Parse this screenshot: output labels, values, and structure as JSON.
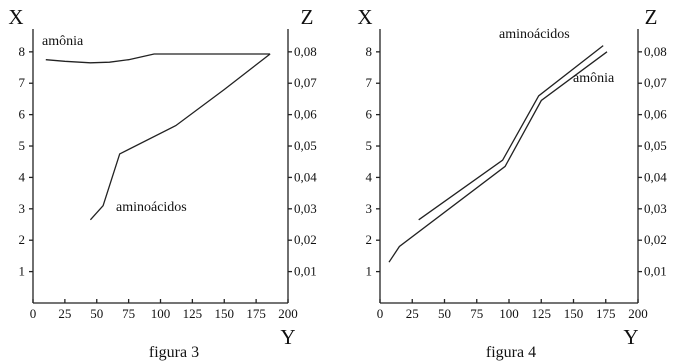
{
  "chart_data": [
    {
      "type": "line",
      "caption": "figura 3",
      "left_axis_letter": "X",
      "right_axis_letter": "Z",
      "bottom_axis_letter": "Y",
      "xlim": [
        0,
        200
      ],
      "ylim": [
        0,
        8.6
      ],
      "zlim": [
        0,
        0.086
      ],
      "x_ticks": [
        "0",
        "25",
        "50",
        "75",
        "100",
        "125",
        "150",
        "175",
        "200"
      ],
      "y_ticks": [
        "1",
        "2",
        "3",
        "4",
        "5",
        "6",
        "7",
        "8"
      ],
      "z_ticks": [
        "0,01",
        "0,02",
        "0,03",
        "0,04",
        "0,05",
        "0,06",
        "0,07",
        "0,08"
      ],
      "series": [
        {
          "name": "amônia",
          "axis": "left",
          "x": [
            10,
            25,
            45,
            60,
            75,
            95,
            120,
            150,
            186
          ],
          "y": [
            7.75,
            7.7,
            7.65,
            7.67,
            7.75,
            7.93,
            7.93,
            7.93,
            7.93
          ]
        },
        {
          "name": "aminoácidos",
          "axis": "left",
          "x": [
            45,
            55,
            68,
            112,
            150,
            186
          ],
          "y": [
            2.65,
            3.1,
            4.75,
            5.65,
            6.8,
            7.93
          ]
        }
      ]
    },
    {
      "type": "line",
      "caption": "figura 4",
      "left_axis_letter": "X",
      "right_axis_letter": "Z",
      "bottom_axis_letter": "Y",
      "xlim": [
        0,
        200
      ],
      "ylim": [
        0,
        8.6
      ],
      "zlim": [
        0,
        0.086
      ],
      "x_ticks": [
        "0",
        "25",
        "50",
        "75",
        "100",
        "125",
        "150",
        "175",
        "200"
      ],
      "y_ticks": [
        "1",
        "2",
        "3",
        "4",
        "5",
        "6",
        "7",
        "8"
      ],
      "z_ticks": [
        "0,01",
        "0,02",
        "0,03",
        "0,04",
        "0,05",
        "0,06",
        "0,07",
        "0,08"
      ],
      "series": [
        {
          "name": "aminoácidos",
          "axis": "left",
          "x": [
            30,
            95,
            123,
            173
          ],
          "y": [
            2.65,
            4.55,
            6.6,
            8.2
          ]
        },
        {
          "name": "amônia",
          "axis": "left",
          "x": [
            7,
            15,
            97,
            125,
            176
          ],
          "y": [
            1.3,
            1.8,
            4.35,
            6.45,
            8.0
          ]
        }
      ]
    }
  ]
}
